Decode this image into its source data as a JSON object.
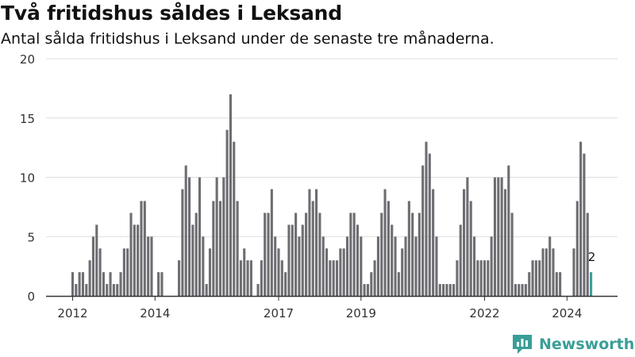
{
  "title": "Två fritidshus såldes i Leksand",
  "subtitle": "Antal sålda fritidshus i Leksand under de senaste tre månaderna.",
  "brand": "Newsworthy",
  "colors": {
    "bar": "#6e6d72",
    "highlight": "#3a9e97",
    "grid": "#dddddd",
    "axis": "#333333",
    "text": "#333333"
  },
  "chart_data": {
    "type": "bar",
    "y_ticks": [
      0,
      5,
      10,
      15,
      20
    ],
    "ylim": [
      0,
      20
    ],
    "grid": true,
    "x_ticks": [
      "2012",
      "2014",
      "2017",
      "2019",
      "2022",
      "2024"
    ],
    "series": [
      {
        "values": [
          2,
          1,
          2,
          2,
          1,
          3,
          5,
          6,
          4,
          2,
          1,
          2,
          1,
          1,
          2,
          4,
          4,
          7,
          6,
          6,
          8,
          8,
          5,
          5,
          0,
          2,
          2,
          0,
          0,
          0,
          0,
          3,
          9,
          11,
          10,
          6,
          7,
          10,
          5,
          1,
          4,
          8,
          10,
          8,
          10,
          14,
          17,
          13,
          8,
          3,
          4,
          3,
          3,
          0,
          1,
          3,
          7,
          7,
          9,
          5,
          4,
          3,
          2,
          6,
          6,
          7,
          5,
          6,
          7,
          9,
          8,
          9,
          7,
          5,
          4,
          3,
          3,
          3,
          4,
          4,
          5,
          7,
          7,
          6,
          5,
          1,
          1,
          2,
          3,
          5,
          7,
          9,
          8,
          6,
          5,
          2,
          4,
          5,
          8,
          7,
          5,
          7,
          11,
          13,
          12,
          9,
          5,
          1,
          1,
          1,
          1,
          1,
          3,
          6,
          9,
          10,
          8,
          5,
          3,
          3,
          3,
          3,
          5,
          10,
          10,
          10,
          9,
          11,
          7,
          1,
          1,
          1,
          1,
          2,
          3,
          3,
          3,
          4,
          4,
          5,
          4,
          2,
          2,
          0,
          0,
          0,
          4,
          8,
          13,
          12,
          7,
          2
        ]
      }
    ],
    "highlight_index": 151,
    "highlight_label": "2"
  }
}
